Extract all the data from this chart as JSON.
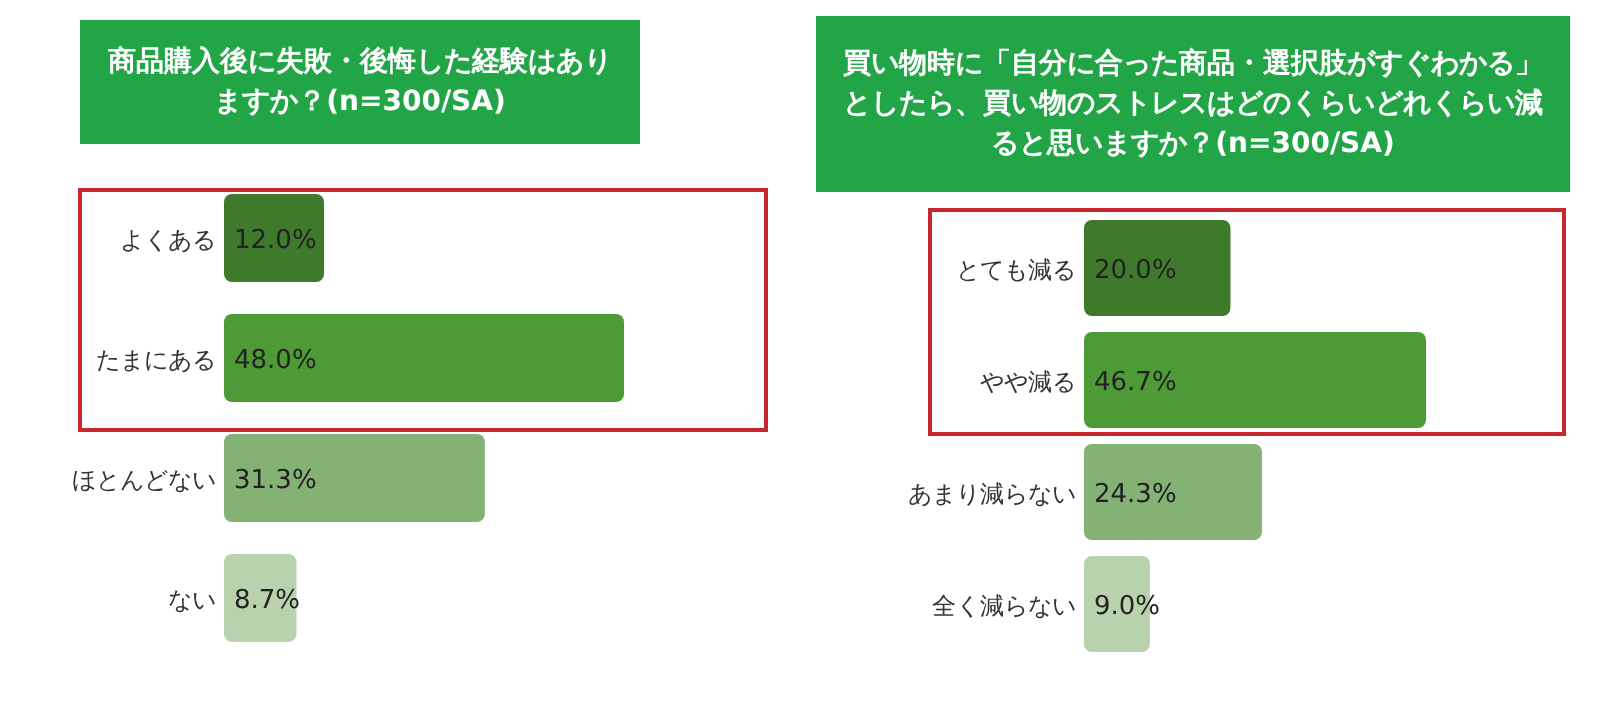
{
  "chart_data": [
    {
      "type": "bar",
      "orientation": "horizontal",
      "title": "商品購入後に失敗・後悔した経験はありますか？(n=300/SA)",
      "categories": [
        "よくある",
        "たまにある",
        "ほとんどない",
        "ない"
      ],
      "values": [
        12.0,
        48.0,
        31.3,
        8.7
      ],
      "value_labels": [
        "12.0%",
        "48.0%",
        "31.3%",
        "8.7%"
      ],
      "colors": [
        "#3f7a2c",
        "#4e9a36",
        "#83b274",
        "#b7d2ad"
      ]
    },
    {
      "type": "bar",
      "orientation": "horizontal",
      "title": "買い物時に「自分に合った商品・選択肢がすぐわかる」としたら、買い物のストレスはどのくらいどれくらい減ると思いますか？(n=300/SA)",
      "categories": [
        "とても減る",
        "やや減る",
        "あまり減らない",
        "全く減らない"
      ],
      "values": [
        20.0,
        46.7,
        24.3,
        9.0
      ],
      "value_labels": [
        "20.0%",
        "46.7%",
        "24.3%",
        "9.0%"
      ],
      "colors": [
        "#3f7a2c",
        "#4e9a36",
        "#83b274",
        "#b7d2ad"
      ]
    }
  ]
}
